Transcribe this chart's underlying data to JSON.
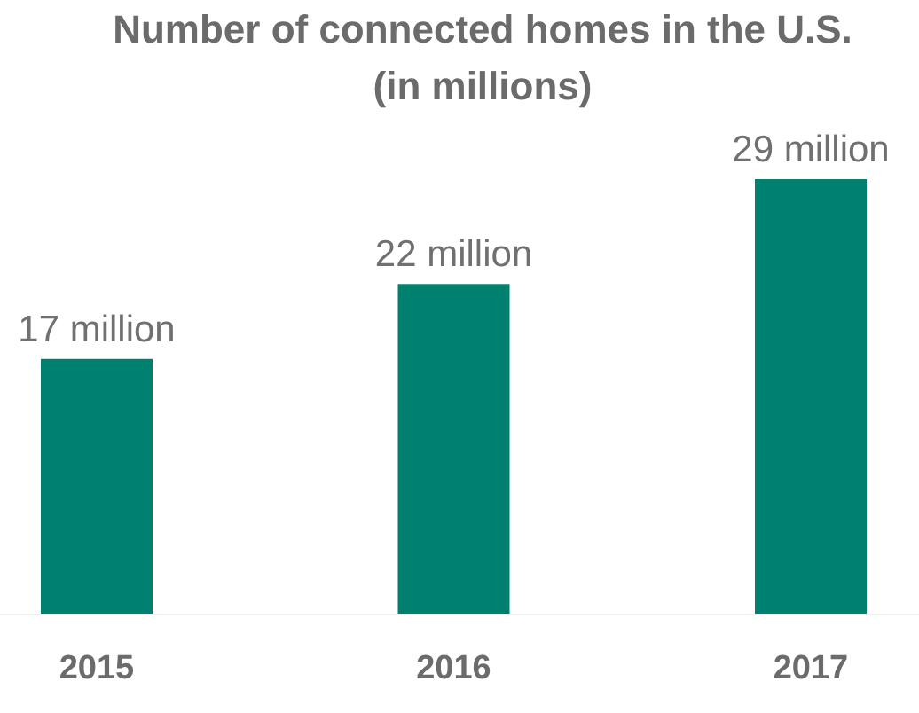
{
  "chart_data": {
    "type": "bar",
    "title": "Number of connected homes in the U.S.\n(in millions)",
    "categories": [
      "2015",
      "2016",
      "2017"
    ],
    "values": [
      17,
      22,
      29
    ],
    "value_labels": [
      "17 million",
      "22 million",
      "29 million"
    ],
    "color": "#00806f"
  }
}
